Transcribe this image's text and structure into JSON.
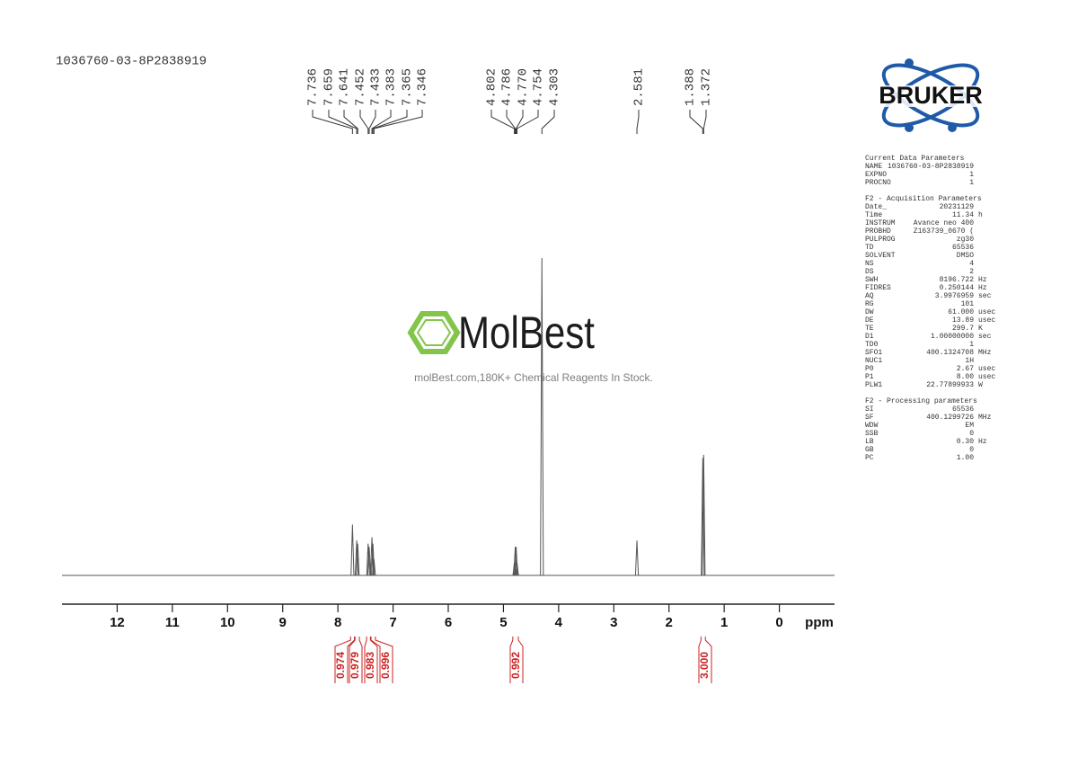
{
  "chart_data": {
    "type": "spectrum",
    "title": "1036760-03-8P2838919",
    "x_label": "ppm",
    "x": [
      7.736,
      7.659,
      7.641,
      7.452,
      7.433,
      7.383,
      7.365,
      7.346,
      4.802,
      4.786,
      {
        "value": 4.77,
        "label": "4.770"
      },
      4.754,
      4.303,
      2.581,
      1.388,
      1.372
    ],
    "values": [
      16,
      11,
      10,
      10,
      9,
      12,
      10,
      5,
      4,
      9,
      9,
      4,
      100,
      11,
      37,
      38
    ],
    "color": "#555555",
    "xlim": [
      13,
      -1
    ],
    "xticks": [
      12,
      11,
      10,
      9,
      8,
      7,
      6,
      5,
      4,
      3,
      2,
      1,
      0
    ],
    "ylim": [
      0,
      100
    ],
    "integrals": {
      "color": "#cc2222",
      "ranges": [
        [
          7.77,
          7.7
        ],
        [
          7.69,
          7.61
        ],
        [
          7.48,
          7.41
        ],
        [
          7.4,
          7.32
        ],
        [
          4.83,
          4.73
        ],
        [
          1.42,
          1.34
        ]
      ],
      "values": [
        0.974,
        0.979,
        0.983,
        0.996,
        0.992,
        {
          "value": 3,
          "label": "3.000"
        }
      ]
    }
  },
  "logo": "BRUKER",
  "watermark": {
    "brand": "MolBest",
    "tagline": "molBest.com,180K+ Chemical Reagents In Stock."
  },
  "parameters": [
    {
      "title": "Current Data Parameters",
      "rows": [
        [
          "NAME",
          "1036760-03-8P2838919"
        ],
        [
          "EXPNO",
          "1"
        ],
        [
          "PROCNO",
          "1"
        ]
      ]
    },
    {
      "title": "F2 - Acquisition Parameters",
      "rows": [
        [
          "Date_",
          "20231129"
        ],
        [
          "Time",
          "11.34",
          "h"
        ],
        [
          "INSTRUM",
          "Avance neo 400"
        ],
        [
          "PROBHD",
          "Z163739_0670 ("
        ],
        [
          "PULPROG",
          "zg30"
        ],
        [
          "TD",
          "65536"
        ],
        [
          "SOLVENT",
          "DMSO"
        ],
        [
          "NS",
          "4"
        ],
        [
          "DS",
          "2"
        ],
        [
          "SWH",
          "8196.722",
          "Hz"
        ],
        [
          "FIDRES",
          "0.250144",
          "Hz"
        ],
        [
          "AQ",
          "3.9976959",
          "sec"
        ],
        [
          "RG",
          "101"
        ],
        [
          "DW",
          "61.000",
          "usec"
        ],
        [
          "DE",
          "13.89",
          "usec"
        ],
        [
          "TE",
          "299.7",
          "K"
        ],
        [
          "D1",
          "1.00000000",
          "sec"
        ],
        [
          "TD0",
          "1"
        ],
        [
          "SFO1",
          "400.1324708",
          "MHz"
        ],
        [
          "NUC1",
          "1H"
        ],
        [
          "P0",
          "2.67",
          "usec"
        ],
        [
          "P1",
          "8.00",
          "usec"
        ],
        [
          "PLW1",
          "22.77899933",
          "W"
        ]
      ]
    },
    {
      "title": "F2 - Processing parameters",
      "rows": [
        [
          "SI",
          "65536"
        ],
        [
          "SF",
          "400.1299726",
          "MHz"
        ],
        [
          "WDW",
          "EM"
        ],
        [
          "SSB",
          "0"
        ],
        [
          "LB",
          "0.30",
          "Hz"
        ],
        [
          "GB",
          "0"
        ],
        [
          "PC",
          "1.00"
        ]
      ]
    }
  ]
}
